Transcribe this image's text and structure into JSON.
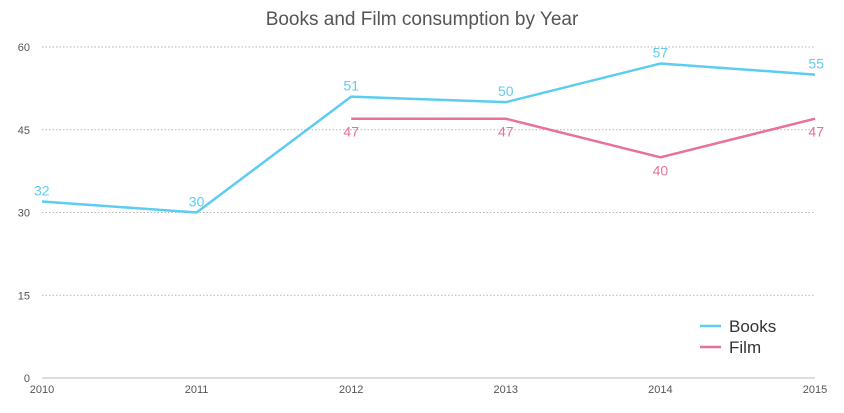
{
  "chart_data": {
    "type": "line",
    "title": "Books and Film consumption by Year",
    "xlabel": "",
    "ylabel": "",
    "categories": [
      "2010",
      "2011",
      "2012",
      "2013",
      "2014",
      "2015"
    ],
    "ylim": [
      0,
      60
    ],
    "yticks": [
      0,
      15,
      30,
      45,
      60
    ],
    "grid": true,
    "legend_position": "bottom-right",
    "series": [
      {
        "name": "Books",
        "color": "#5ccdf0",
        "values": [
          32,
          30,
          51,
          50,
          57,
          55
        ]
      },
      {
        "name": "Film",
        "color": "#e8709e",
        "values": [
          null,
          null,
          47,
          47,
          40,
          47
        ]
      }
    ]
  }
}
